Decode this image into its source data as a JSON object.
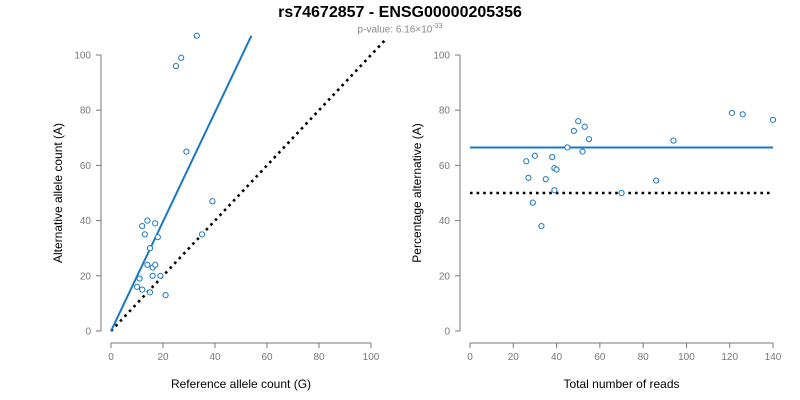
{
  "title": "rs74672857 - ENSG00000205356",
  "subtitle": {
    "prefix": "p-value: 6.16×10",
    "exponent": "-33"
  },
  "colors": {
    "points": "#1a78c2",
    "fit_line": "#1a78c2",
    "reference_line": "#000000",
    "axis": "#777777"
  },
  "chart_data": [
    {
      "type": "scatter",
      "xlabel": "Reference allele count (G)",
      "ylabel": "Alternative allele count (A)",
      "xlim": [
        0,
        100
      ],
      "ylim": [
        0,
        100
      ],
      "xticks": [
        0,
        20,
        40,
        60,
        80,
        100
      ],
      "yticks": [
        0,
        20,
        40,
        60,
        80,
        100
      ],
      "x": [
        10,
        11,
        12,
        12,
        13,
        14,
        14,
        15,
        15,
        16,
        16,
        17,
        17,
        18,
        19,
        21,
        25,
        27,
        29,
        33,
        35,
        39
      ],
      "y": [
        16,
        19,
        15,
        38,
        35,
        40,
        24,
        14,
        30,
        23,
        20,
        39,
        24,
        34,
        20,
        13,
        96,
        99,
        65,
        107,
        35,
        47
      ],
      "fit_line": {
        "x": [
          0,
          54
        ],
        "y": [
          0,
          107
        ]
      },
      "reference_line": {
        "x": [
          0,
          106
        ],
        "y": [
          0,
          106
        ],
        "style": "dotted"
      }
    },
    {
      "type": "scatter",
      "xlabel": "Total number of reads",
      "ylabel": "Percentage alternative (A)",
      "xlim": [
        0,
        140
      ],
      "ylim": [
        0,
        100
      ],
      "xticks": [
        0,
        20,
        40,
        60,
        80,
        100,
        120,
        140
      ],
      "yticks": [
        0,
        20,
        40,
        60,
        80,
        100
      ],
      "x": [
        26,
        27,
        29,
        30,
        33,
        35,
        38,
        39,
        39,
        40,
        45,
        48,
        50,
        52,
        53,
        55,
        70,
        86,
        94,
        121,
        126,
        140
      ],
      "y": [
        61.5,
        55.5,
        46.5,
        63.5,
        38,
        55,
        63,
        59,
        51,
        58.5,
        66.5,
        72.5,
        76,
        65,
        74,
        69.5,
        50,
        54.5,
        69,
        79,
        78.5,
        76.5
      ],
      "fit_line": {
        "x": [
          0,
          140
        ],
        "y": [
          66.5,
          66.5
        ]
      },
      "reference_line": {
        "x": [
          0,
          140
        ],
        "y": [
          50,
          50
        ],
        "style": "dotted"
      }
    }
  ]
}
